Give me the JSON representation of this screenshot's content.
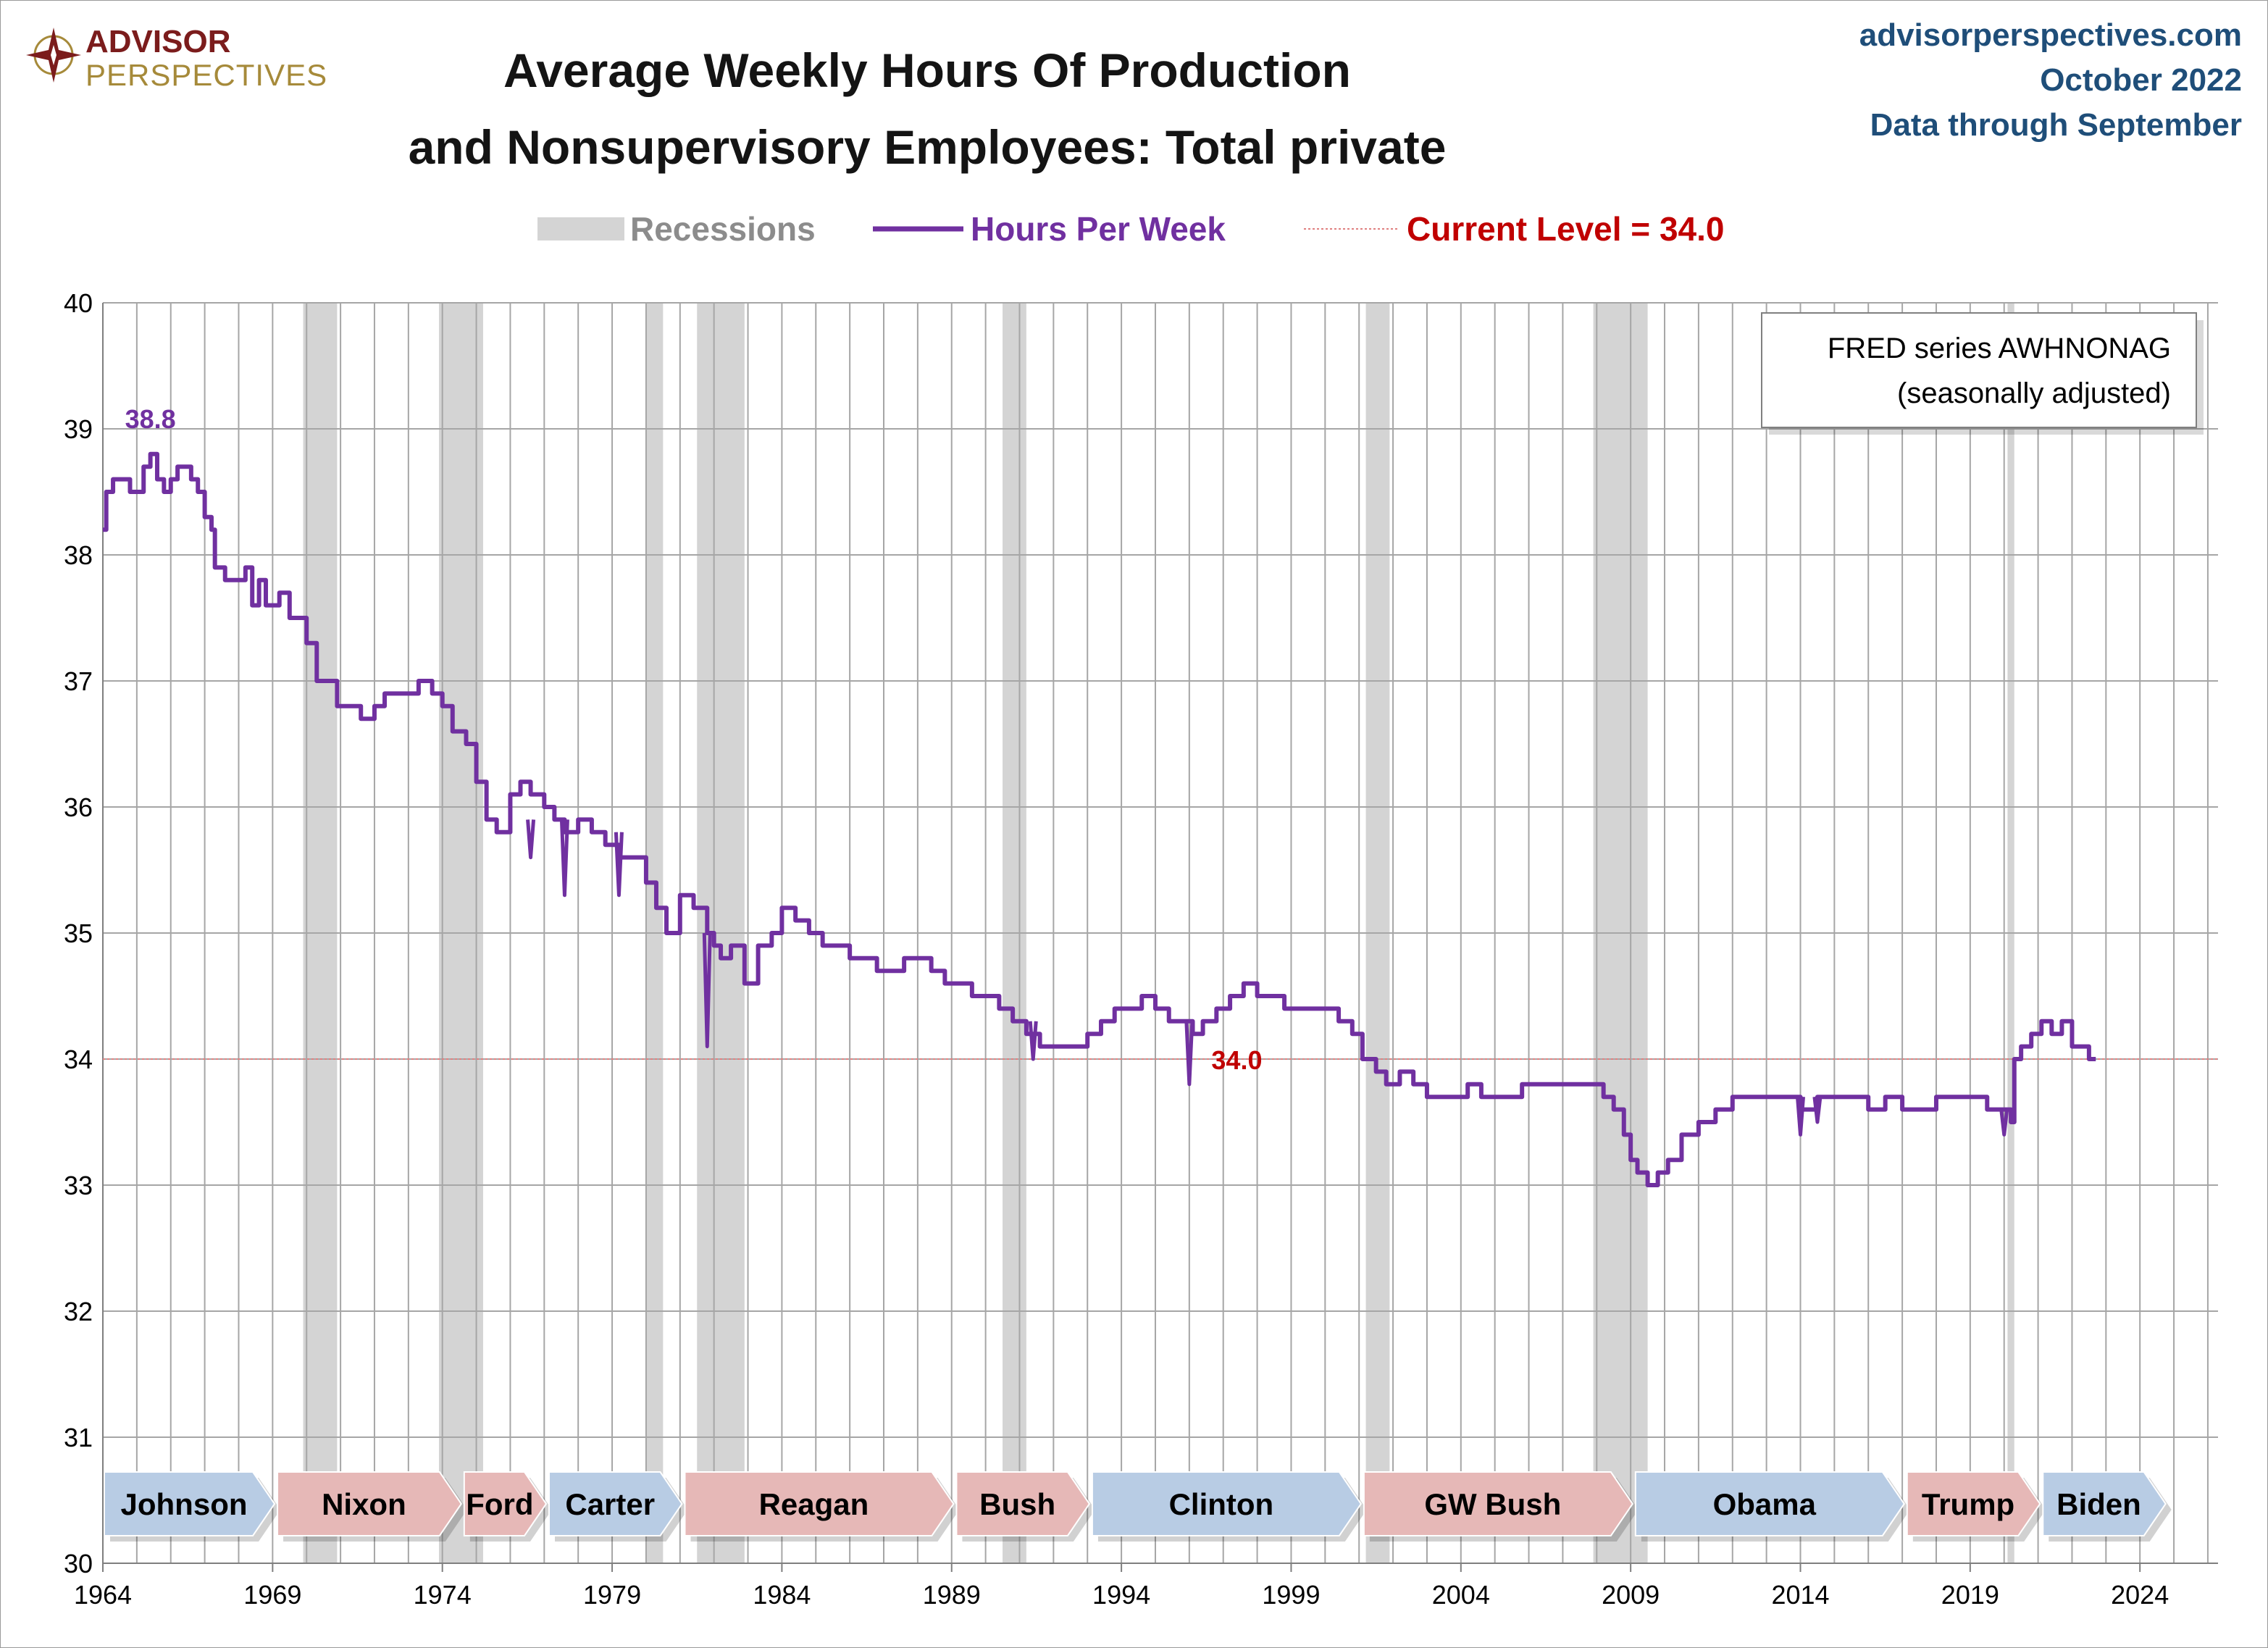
{
  "logo": {
    "line1": "ADVISOR",
    "line2": "PERSPECTIVES",
    "icon": "compass-star-icon",
    "color": "#7b1c1c",
    "color2": "#a68a3a"
  },
  "header": {
    "title_line1": "Average Weekly Hours Of Production",
    "title_line2": "and Nonsupervisory Employees: Total private",
    "site": "advisorperspectives.com",
    "date": "October 2022",
    "data_through": "Data through September"
  },
  "legend": {
    "recessions": "Recessions",
    "series": "Hours Per Week",
    "current": "Current Level = 34.0"
  },
  "fred_box": {
    "line1": "FRED series  AWHNONAG",
    "line2": "(seasonally adjusted)"
  },
  "colors": {
    "line": "#7030a0",
    "current": "#c00000",
    "recession": "#d4d4d4",
    "blue_term": "#b8cce4",
    "red_term": "#e6b8b7",
    "grid": "#a6a6a6"
  },
  "chart_data": {
    "type": "line",
    "title": "Average Weekly Hours Of Production and Nonsupervisory Employees: Total private",
    "xlim": [
      1964,
      2026.3
    ],
    "ylim": [
      30,
      40
    ],
    "x_ticks": [
      "1964",
      "1969",
      "1974",
      "1979",
      "1984",
      "1989",
      "1994",
      "1999",
      "2004",
      "2009",
      "2014",
      "2019",
      "2024"
    ],
    "y_ticks": [
      "30",
      "31",
      "32",
      "33",
      "34",
      "35",
      "36",
      "37",
      "38",
      "39",
      "40"
    ],
    "current_level": 34.0,
    "current_label": "34.0",
    "peak_label": "38.8",
    "peak": [
      1965.4,
      38.8
    ],
    "series": [
      {
        "name": "Hours Per Week",
        "points": [
          [
            1964.0,
            38.2
          ],
          [
            1964.1,
            38.5
          ],
          [
            1964.3,
            38.6
          ],
          [
            1964.6,
            38.6
          ],
          [
            1964.8,
            38.5
          ],
          [
            1965.0,
            38.5
          ],
          [
            1965.2,
            38.7
          ],
          [
            1965.4,
            38.8
          ],
          [
            1965.6,
            38.6
          ],
          [
            1965.8,
            38.5
          ],
          [
            1966.0,
            38.6
          ],
          [
            1966.2,
            38.7
          ],
          [
            1966.4,
            38.7
          ],
          [
            1966.6,
            38.6
          ],
          [
            1966.8,
            38.5
          ],
          [
            1967.0,
            38.3
          ],
          [
            1967.2,
            38.2
          ],
          [
            1967.3,
            37.9
          ],
          [
            1967.6,
            37.8
          ],
          [
            1968.0,
            37.8
          ],
          [
            1968.2,
            37.9
          ],
          [
            1968.4,
            37.6
          ],
          [
            1968.6,
            37.8
          ],
          [
            1968.8,
            37.6
          ],
          [
            1969.0,
            37.6
          ],
          [
            1969.2,
            37.7
          ],
          [
            1969.5,
            37.5
          ],
          [
            1969.8,
            37.5
          ],
          [
            1970.0,
            37.3
          ],
          [
            1970.3,
            37.0
          ],
          [
            1970.6,
            37.0
          ],
          [
            1970.9,
            36.8
          ],
          [
            1971.3,
            36.8
          ],
          [
            1971.6,
            36.7
          ],
          [
            1972.0,
            36.8
          ],
          [
            1972.3,
            36.9
          ],
          [
            1972.7,
            36.9
          ],
          [
            1973.0,
            36.9
          ],
          [
            1973.3,
            37.0
          ],
          [
            1973.7,
            36.9
          ],
          [
            1974.0,
            36.8
          ],
          [
            1974.3,
            36.6
          ],
          [
            1974.7,
            36.5
          ],
          [
            1975.0,
            36.2
          ],
          [
            1975.3,
            35.9
          ],
          [
            1975.6,
            35.8
          ],
          [
            1976.0,
            36.1
          ],
          [
            1976.3,
            36.2
          ],
          [
            1976.6,
            36.1
          ],
          [
            1977.0,
            36.0
          ],
          [
            1977.3,
            35.9
          ],
          [
            1977.6,
            35.8
          ],
          [
            1978.0,
            35.9
          ],
          [
            1978.4,
            35.8
          ],
          [
            1978.8,
            35.7
          ],
          [
            1979.2,
            35.6
          ],
          [
            1979.6,
            35.6
          ],
          [
            1980.0,
            35.4
          ],
          [
            1980.3,
            35.2
          ],
          [
            1980.6,
            35.0
          ],
          [
            1981.0,
            35.3
          ],
          [
            1981.4,
            35.2
          ],
          [
            1981.8,
            35.0
          ],
          [
            1982.0,
            34.9
          ],
          [
            1982.2,
            34.8
          ],
          [
            1982.5,
            34.9
          ],
          [
            1982.9,
            34.6
          ],
          [
            1983.3,
            34.9
          ],
          [
            1983.7,
            35.0
          ],
          [
            1984.0,
            35.2
          ],
          [
            1984.4,
            35.1
          ],
          [
            1984.8,
            35.0
          ],
          [
            1985.2,
            34.9
          ],
          [
            1985.6,
            34.9
          ],
          [
            1986.0,
            34.8
          ],
          [
            1986.4,
            34.8
          ],
          [
            1986.8,
            34.7
          ],
          [
            1987.2,
            34.7
          ],
          [
            1987.6,
            34.8
          ],
          [
            1988.0,
            34.8
          ],
          [
            1988.4,
            34.7
          ],
          [
            1988.8,
            34.6
          ],
          [
            1989.2,
            34.6
          ],
          [
            1989.6,
            34.5
          ],
          [
            1990.0,
            34.5
          ],
          [
            1990.4,
            34.4
          ],
          [
            1990.8,
            34.3
          ],
          [
            1991.2,
            34.2
          ],
          [
            1991.6,
            34.1
          ],
          [
            1992.0,
            34.1
          ],
          [
            1992.5,
            34.1
          ],
          [
            1993.0,
            34.2
          ],
          [
            1993.4,
            34.3
          ],
          [
            1993.8,
            34.4
          ],
          [
            1994.2,
            34.4
          ],
          [
            1994.6,
            34.5
          ],
          [
            1995.0,
            34.4
          ],
          [
            1995.4,
            34.3
          ],
          [
            1995.8,
            34.3
          ],
          [
            1996.1,
            34.2
          ],
          [
            1996.4,
            34.3
          ],
          [
            1996.8,
            34.4
          ],
          [
            1997.2,
            34.5
          ],
          [
            1997.6,
            34.6
          ],
          [
            1998.0,
            34.5
          ],
          [
            1998.4,
            34.5
          ],
          [
            1998.8,
            34.4
          ],
          [
            1999.2,
            34.4
          ],
          [
            1999.6,
            34.4
          ],
          [
            2000.0,
            34.4
          ],
          [
            2000.4,
            34.3
          ],
          [
            2000.8,
            34.2
          ],
          [
            2001.1,
            34.0
          ],
          [
            2001.5,
            33.9
          ],
          [
            2001.8,
            33.8
          ],
          [
            2002.2,
            33.9
          ],
          [
            2002.6,
            33.8
          ],
          [
            2003.0,
            33.7
          ],
          [
            2003.4,
            33.7
          ],
          [
            2003.8,
            33.7
          ],
          [
            2004.2,
            33.8
          ],
          [
            2004.6,
            33.7
          ],
          [
            2005.0,
            33.7
          ],
          [
            2005.4,
            33.7
          ],
          [
            2005.8,
            33.8
          ],
          [
            2006.2,
            33.8
          ],
          [
            2006.6,
            33.8
          ],
          [
            2007.0,
            33.8
          ],
          [
            2007.4,
            33.8
          ],
          [
            2007.8,
            33.8
          ],
          [
            2008.2,
            33.7
          ],
          [
            2008.5,
            33.6
          ],
          [
            2008.8,
            33.4
          ],
          [
            2009.0,
            33.2
          ],
          [
            2009.2,
            33.1
          ],
          [
            2009.5,
            33.0
          ],
          [
            2009.8,
            33.1
          ],
          [
            2010.1,
            33.2
          ],
          [
            2010.5,
            33.4
          ],
          [
            2011.0,
            33.5
          ],
          [
            2011.5,
            33.6
          ],
          [
            2012.0,
            33.7
          ],
          [
            2012.5,
            33.7
          ],
          [
            2013.0,
            33.7
          ],
          [
            2013.5,
            33.7
          ],
          [
            2014.0,
            33.6
          ],
          [
            2014.5,
            33.7
          ],
          [
            2015.0,
            33.7
          ],
          [
            2015.5,
            33.7
          ],
          [
            2016.0,
            33.6
          ],
          [
            2016.5,
            33.7
          ],
          [
            2017.0,
            33.6
          ],
          [
            2017.5,
            33.6
          ],
          [
            2018.0,
            33.7
          ],
          [
            2018.5,
            33.7
          ],
          [
            2019.0,
            33.7
          ],
          [
            2019.5,
            33.6
          ],
          [
            2020.0,
            33.6
          ],
          [
            2020.2,
            33.5
          ],
          [
            2020.3,
            34.0
          ],
          [
            2020.5,
            34.1
          ],
          [
            2020.8,
            34.2
          ],
          [
            2021.1,
            34.3
          ],
          [
            2021.4,
            34.2
          ],
          [
            2021.7,
            34.3
          ],
          [
            2022.0,
            34.1
          ],
          [
            2022.3,
            34.1
          ],
          [
            2022.5,
            34.0
          ],
          [
            2022.7,
            34.0
          ]
        ]
      }
    ],
    "spikes": [
      [
        1981.8,
        35.0,
        34.1
      ],
      [
        1991.4,
        34.3,
        34.0
      ],
      [
        1996.0,
        34.3,
        33.8
      ],
      [
        2014.0,
        33.7,
        33.4
      ],
      [
        2014.5,
        33.7,
        33.5
      ],
      [
        2020.0,
        33.6,
        33.4
      ],
      [
        1979.2,
        35.8,
        35.3
      ],
      [
        1977.6,
        35.9,
        35.3
      ],
      [
        1976.6,
        35.9,
        35.6
      ]
    ],
    "recessions": [
      [
        1969.9,
        1970.9
      ],
      [
        1973.9,
        1975.2
      ],
      [
        1980.0,
        1980.5
      ],
      [
        1981.5,
        1982.9
      ],
      [
        1990.5,
        1991.2
      ],
      [
        2001.2,
        2001.9
      ],
      [
        2007.9,
        2009.5
      ],
      [
        2020.1,
        2020.3
      ]
    ],
    "presidents": [
      {
        "name": "Johnson",
        "start": 1964.0,
        "end": 1969.1,
        "color": "blue"
      },
      {
        "name": "Nixon",
        "start": 1969.1,
        "end": 1974.6,
        "color": "red"
      },
      {
        "name": "Ford",
        "start": 1974.6,
        "end": 1977.1,
        "color": "red"
      },
      {
        "name": "Carter",
        "start": 1977.1,
        "end": 1981.1,
        "color": "blue"
      },
      {
        "name": "Reagan",
        "start": 1981.1,
        "end": 1989.1,
        "color": "red"
      },
      {
        "name": "Bush",
        "start": 1989.1,
        "end": 1993.1,
        "color": "red"
      },
      {
        "name": "Clinton",
        "start": 1993.1,
        "end": 2001.1,
        "color": "blue"
      },
      {
        "name": "GW Bush",
        "start": 2001.1,
        "end": 2009.1,
        "color": "red"
      },
      {
        "name": "Obama",
        "start": 2009.1,
        "end": 2017.1,
        "color": "blue"
      },
      {
        "name": "Trump",
        "start": 2017.1,
        "end": 2021.1,
        "color": "red"
      },
      {
        "name": "Biden",
        "start": 2021.1,
        "end": 2024.8,
        "color": "blue"
      }
    ]
  }
}
